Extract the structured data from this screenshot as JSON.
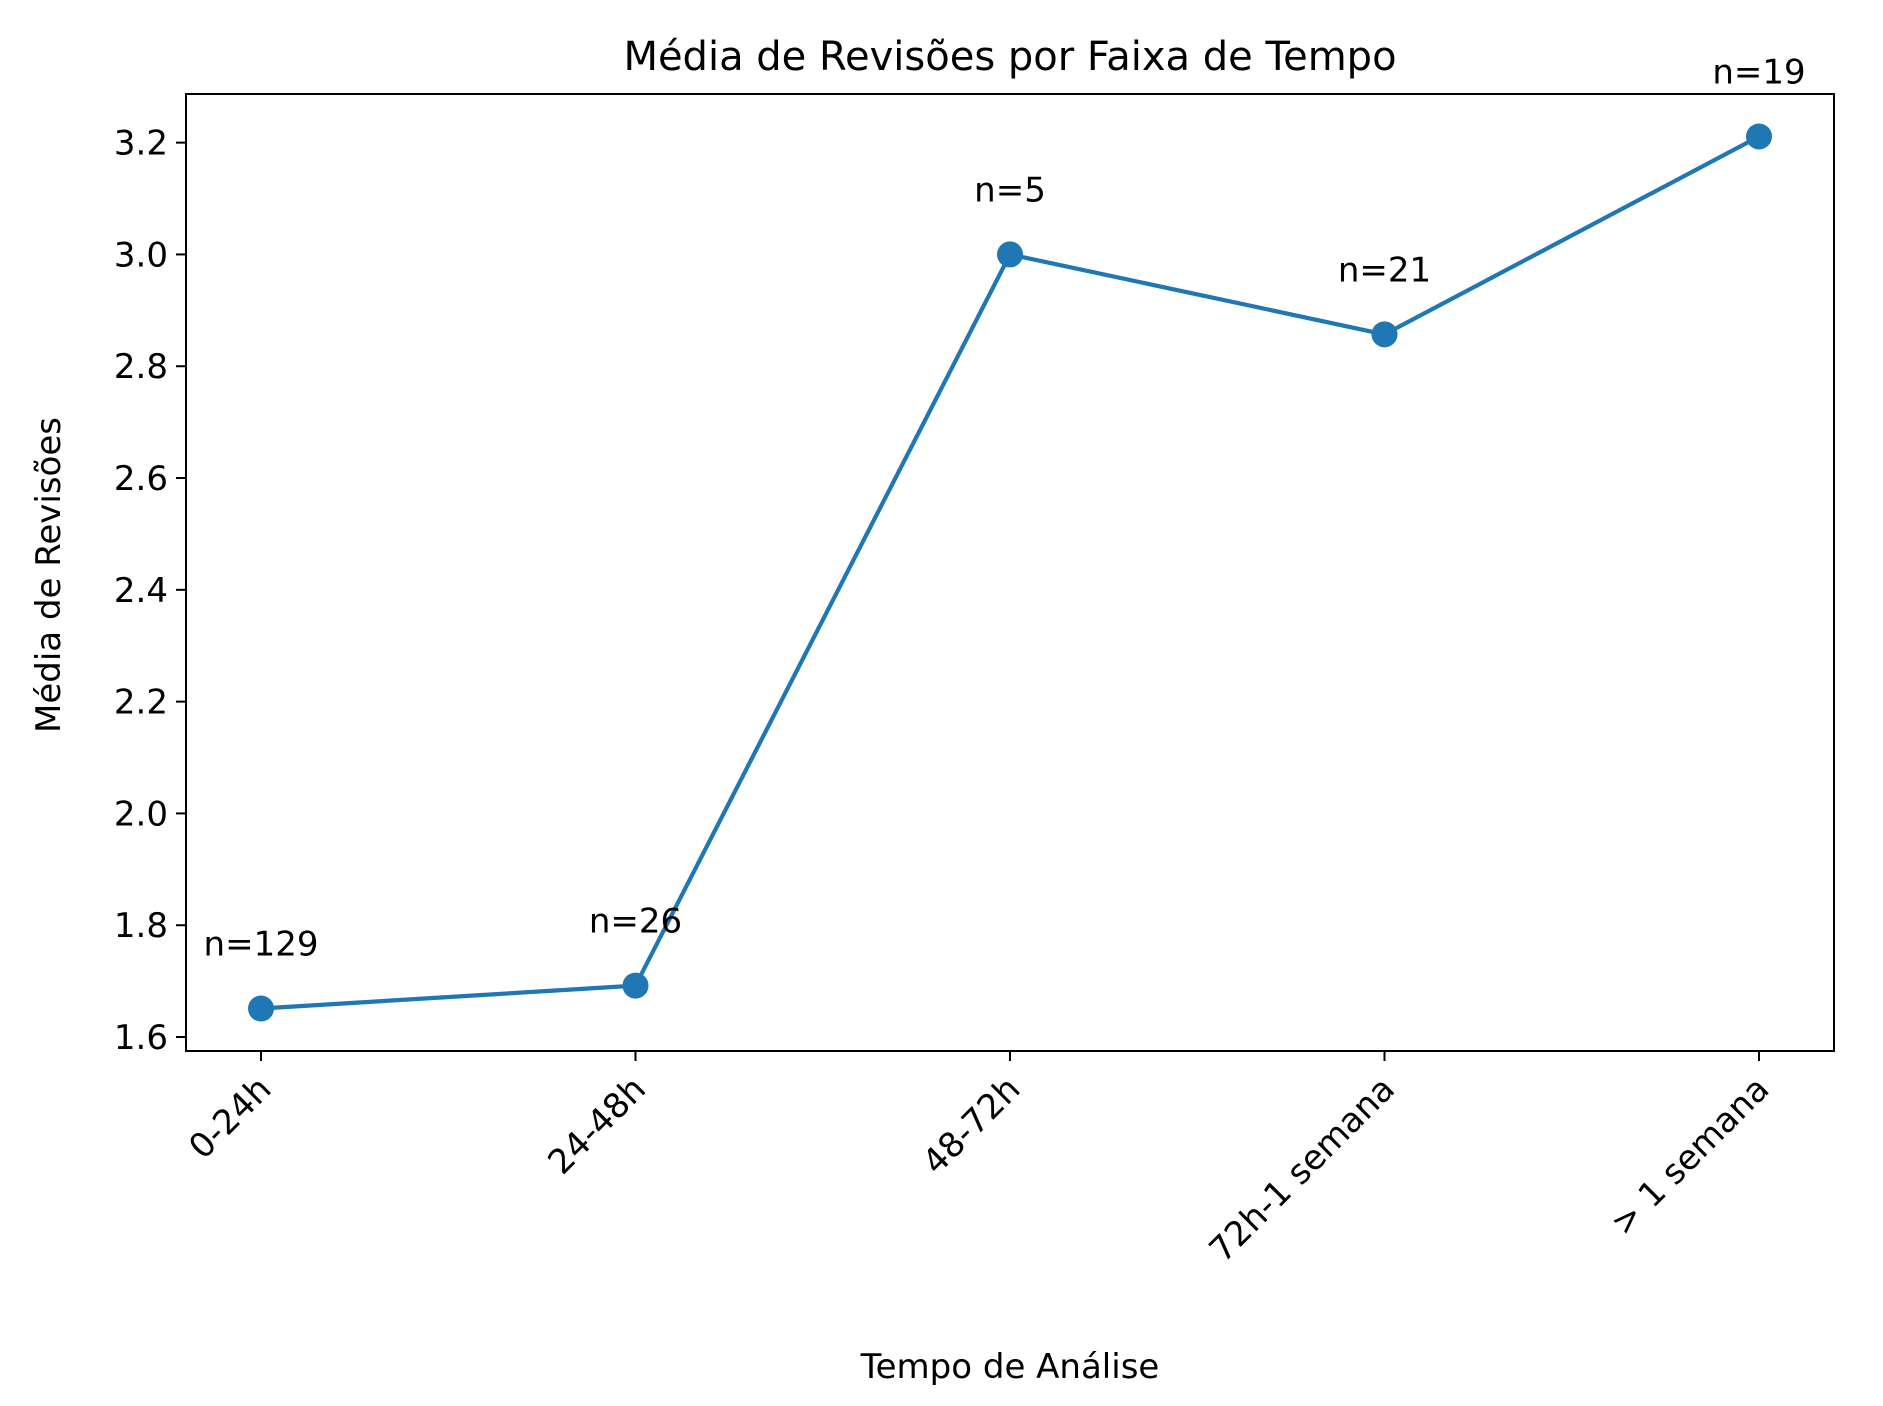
{
  "chart_data": {
    "type": "line",
    "title": "Média de Revisões por Faixa de Tempo",
    "xlabel": "Tempo de Análise",
    "ylabel": "Média de Revisões",
    "categories": [
      "0-24h",
      "24-48h",
      "48-72h",
      "72h-1 semana",
      "> 1 semana"
    ],
    "series": [
      {
        "values": [
          1.651,
          1.692,
          3.0,
          2.857,
          3.211
        ],
        "point_labels": [
          "n=129",
          "n=26",
          "n=5",
          "n=21",
          "n=19"
        ],
        "color": "#1f77b4",
        "marker": "circle"
      }
    ],
    "ylim": [
      1.575,
      3.287
    ],
    "yticks": [
      1.6,
      1.8,
      2.0,
      2.2,
      2.4,
      2.6,
      2.8,
      3.0,
      3.2
    ],
    "ytick_labels": [
      "1.6",
      "1.8",
      "2.0",
      "2.2",
      "2.4",
      "2.6",
      "2.8",
      "3.0",
      "3.2"
    ],
    "xtick_rotation_deg": 45,
    "grid": false,
    "legend": false
  }
}
